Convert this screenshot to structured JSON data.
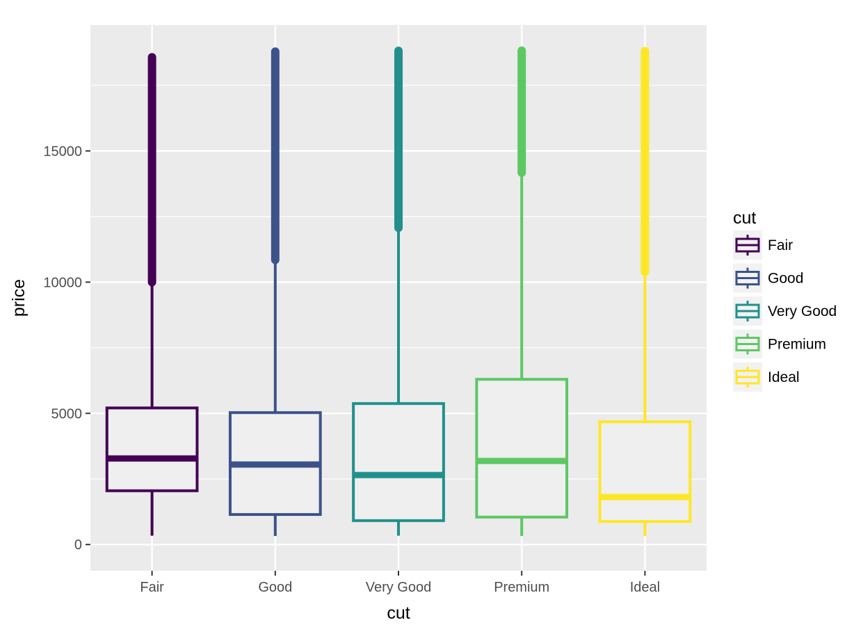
{
  "chart_data": {
    "type": "box",
    "xlabel": "cut",
    "ylabel": "price",
    "ylim": [
      -1000,
      19800
    ],
    "yticks": [
      0,
      5000,
      10000,
      15000
    ],
    "categories": [
      "Fair",
      "Good",
      "Very Good",
      "Premium",
      "Ideal"
    ],
    "legend": {
      "title": "cut",
      "position": "right"
    },
    "series": [
      {
        "name": "Fair",
        "color": "#440154",
        "lower_whisker": 337,
        "q1": 2050,
        "median": 3282,
        "q3": 5206,
        "upper_whisker": 9990,
        "outliers_range": [
          10000,
          18574
        ]
      },
      {
        "name": "Good",
        "color": "#3B528B",
        "lower_whisker": 327,
        "q1": 1145,
        "median": 3050,
        "q3": 5028,
        "upper_whisker": 10830,
        "outliers_range": [
          10850,
          18788
        ]
      },
      {
        "name": "Very Good",
        "color": "#21908C",
        "lower_whisker": 336,
        "q1": 912,
        "median": 2648,
        "q3": 5373,
        "upper_whisker": 12060,
        "outliers_range": [
          12070,
          18818
        ]
      },
      {
        "name": "Premium",
        "color": "#5DC863",
        "lower_whisker": 326,
        "q1": 1046,
        "median": 3185,
        "q3": 6296,
        "upper_whisker": 14160,
        "outliers_range": [
          14170,
          18823
        ]
      },
      {
        "name": "Ideal",
        "color": "#FDE725",
        "lower_whisker": 326,
        "q1": 878,
        "median": 1810,
        "q3": 4678,
        "upper_whisker": 10380,
        "outliers_range": [
          10390,
          18806
        ]
      }
    ],
    "grid": true,
    "panel_background": "#EBEBEB"
  }
}
